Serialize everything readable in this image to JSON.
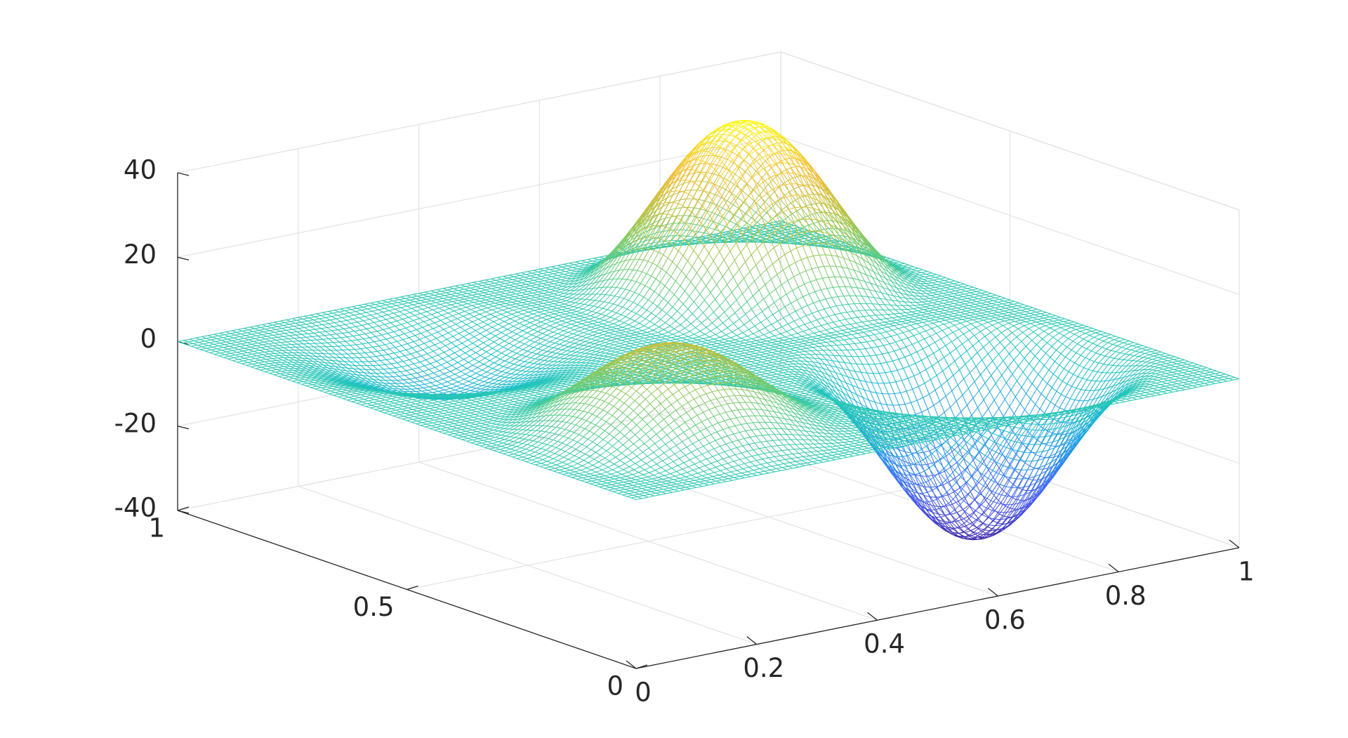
{
  "chart_data": {
    "type": "surface",
    "title": "",
    "xlabel": "",
    "ylabel": "",
    "zlabel": "",
    "xlim": [
      0,
      1
    ],
    "ylim": [
      0,
      1
    ],
    "zlim": [
      -40,
      40
    ],
    "grid": true,
    "mesh": "wireframe",
    "colormap": "parula",
    "x_ticks": [
      {
        "value": 0,
        "label": "0"
      },
      {
        "value": 0.2,
        "label": "0.2"
      },
      {
        "value": 0.4,
        "label": "0.4"
      },
      {
        "value": 0.6,
        "label": "0.6"
      },
      {
        "value": 0.8,
        "label": "0.8"
      },
      {
        "value": 1,
        "label": "1"
      }
    ],
    "y_ticks": [
      {
        "value": 0,
        "label": "0"
      },
      {
        "value": 0.5,
        "label": "0.5"
      },
      {
        "value": 1,
        "label": "1"
      }
    ],
    "z_ticks": [
      {
        "value": 40,
        "label": "40"
      },
      {
        "value": 20,
        "label": "20"
      },
      {
        "value": 0,
        "label": "0"
      },
      {
        "value": -20,
        "label": "-20"
      },
      {
        "value": -40,
        "label": "-40"
      }
    ],
    "bumps": [
      {
        "x_center": 0.25,
        "y_center": 0.25,
        "z_extreme": 20
      },
      {
        "x_center": 0.25,
        "y_center": 0.75,
        "z_extreme": -10
      },
      {
        "x_center": 0.75,
        "y_center": 0.25,
        "z_extreme": -40
      },
      {
        "x_center": 0.75,
        "y_center": 0.75,
        "z_extreme": 40
      }
    ],
    "baseline_z": 0
  }
}
